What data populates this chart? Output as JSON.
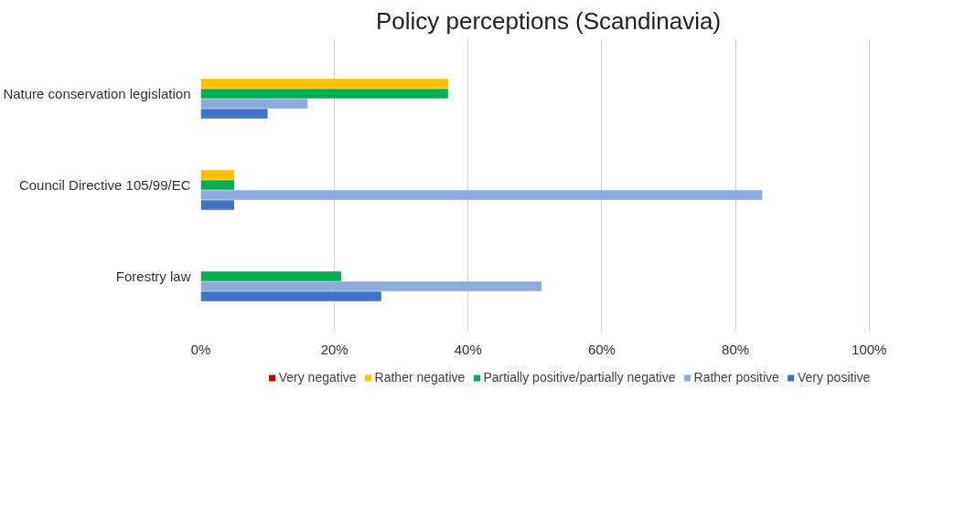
{
  "chart_data": {
    "type": "bar",
    "orientation": "horizontal",
    "title": "Policy perceptions (Scandinavia)",
    "categories": [
      "Nature conservation legislation",
      "Council Directive 105/99/EC",
      "Forestry law"
    ],
    "series": [
      {
        "name": "Very negative",
        "color": "#c00000",
        "values": [
          0,
          0,
          0
        ]
      },
      {
        "name": "Rather negative",
        "color": "#ffc000",
        "values": [
          37,
          5,
          0
        ]
      },
      {
        "name": "Partially positive/partially negative",
        "color": "#00b050",
        "values": [
          37,
          5,
          21
        ]
      },
      {
        "name": "Rather positive",
        "color": "#8faadc",
        "values": [
          16,
          84,
          51
        ]
      },
      {
        "name": "Very positive",
        "color": "#4472c4",
        "values": [
          10,
          5,
          27
        ]
      }
    ],
    "xlim": [
      0,
      100
    ],
    "xticks": [
      {
        "value": 0,
        "label": "0%"
      },
      {
        "value": 20,
        "label": "20%"
      },
      {
        "value": 40,
        "label": "40%"
      },
      {
        "value": 60,
        "label": "60%"
      },
      {
        "value": 80,
        "label": "80%"
      },
      {
        "value": 100,
        "label": "100%"
      }
    ],
    "grid": "x",
    "legend": "bottom"
  }
}
